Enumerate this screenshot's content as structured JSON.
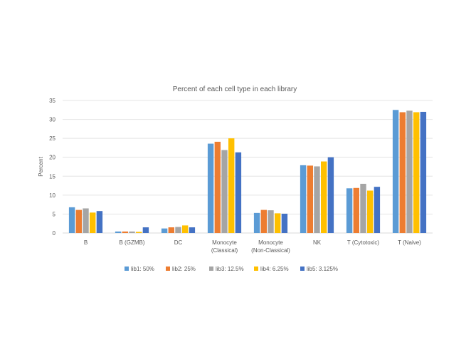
{
  "chart_data": {
    "type": "bar",
    "title": "Percent of each cell type in each library",
    "xlabel": "",
    "ylabel": "Percent",
    "ylim": [
      0,
      35
    ],
    "yticks": [
      0,
      5,
      10,
      15,
      20,
      25,
      30,
      35
    ],
    "grid": true,
    "legend_position": "bottom",
    "categories": [
      [
        "B"
      ],
      [
        "B (GZMB)"
      ],
      [
        "DC"
      ],
      [
        "Monocyte",
        "(Classical)"
      ],
      [
        "Monocyte",
        "(Non-Classical)"
      ],
      [
        "NK"
      ],
      [
        "T (Cytotoxic)"
      ],
      [
        "T (Naive)"
      ]
    ],
    "series": [
      {
        "name": "lib1: 50%",
        "color": "#5b9bd5",
        "values": [
          6.8,
          0.4,
          1.2,
          23.6,
          5.3,
          17.9,
          11.8,
          32.5
        ]
      },
      {
        "name": "lib2: 25%",
        "color": "#ed7d31",
        "values": [
          6.1,
          0.4,
          1.5,
          24.1,
          6.1,
          17.8,
          11.9,
          31.9
        ]
      },
      {
        "name": "lib3: 12.5%",
        "color": "#a5a5a5",
        "values": [
          6.5,
          0.4,
          1.6,
          21.9,
          6.0,
          17.6,
          13.0,
          32.3
        ]
      },
      {
        "name": "lib4: 6.25%",
        "color": "#ffc000",
        "values": [
          5.4,
          0.3,
          2.0,
          25.0,
          5.2,
          18.9,
          11.2,
          31.9
        ]
      },
      {
        "name": "lib5: 3.125%",
        "color": "#4472c4",
        "values": [
          5.8,
          1.5,
          1.5,
          21.3,
          5.1,
          20.0,
          12.2,
          32.0
        ]
      }
    ]
  }
}
